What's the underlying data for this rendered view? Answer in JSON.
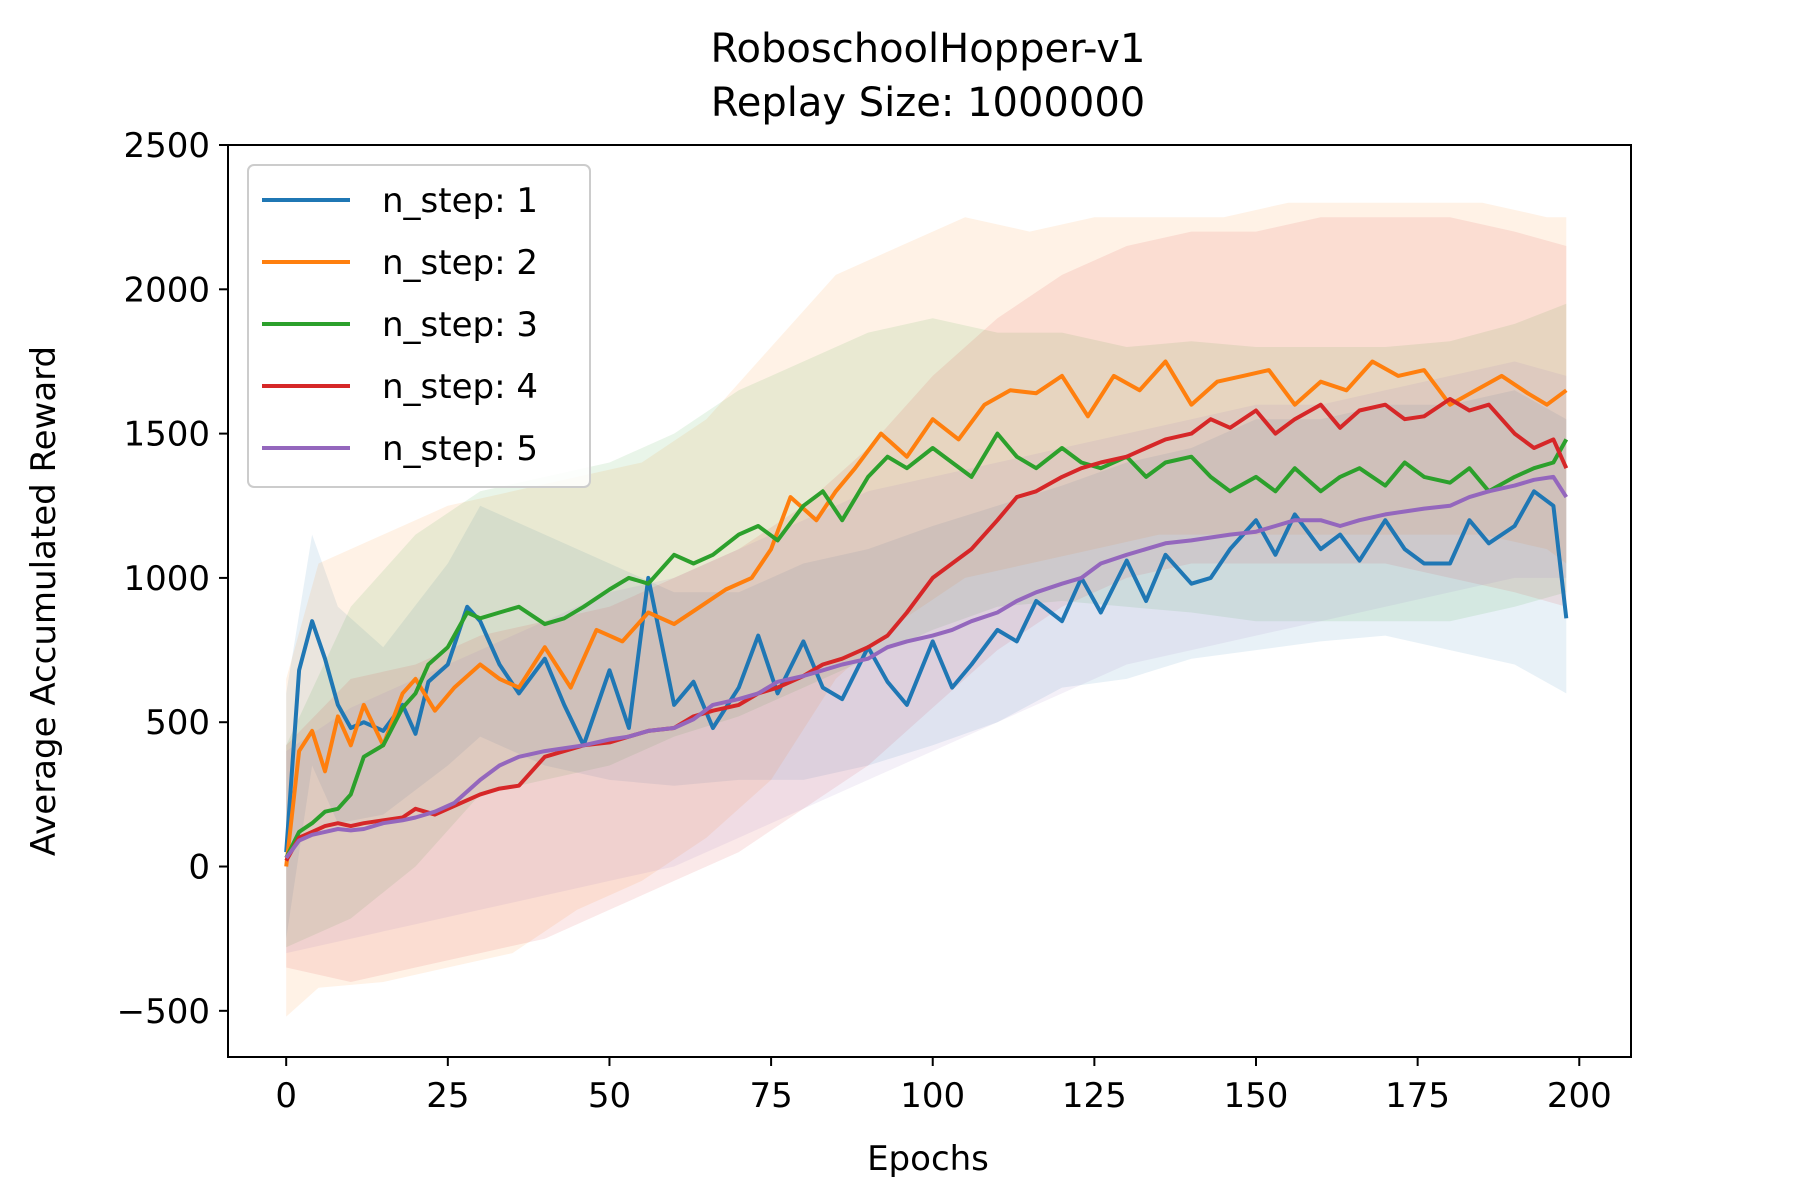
{
  "chart_data": {
    "type": "line",
    "title": "RoboschoolHopper-v1",
    "subtitle": "Replay Size: 1000000",
    "xlabel": "Epochs",
    "ylabel": "Average Accumulated Reward",
    "xlim": [
      -9,
      208
    ],
    "ylim": [
      -660,
      2500
    ],
    "xticks": [
      0,
      25,
      50,
      75,
      100,
      125,
      150,
      175,
      200
    ],
    "yticks": [
      -500,
      0,
      500,
      1000,
      1500,
      2000,
      2500
    ],
    "xtick_labels": [
      "0",
      "25",
      "50",
      "75",
      "100",
      "125",
      "150",
      "175",
      "200"
    ],
    "ytick_labels": [
      "−500",
      "0",
      "500",
      "1000",
      "1500",
      "2000",
      "2500"
    ],
    "legend_position": "upper-left",
    "grid": false,
    "shaded_band": "mean ± std (light translucent fill per series)",
    "series": [
      {
        "name": "n_step: 1",
        "color": "#1f77b4",
        "x": [
          0,
          2,
          4,
          6,
          8,
          10,
          12,
          15,
          18,
          20,
          22,
          25,
          28,
          30,
          33,
          36,
          40,
          43,
          46,
          50,
          53,
          56,
          60,
          63,
          66,
          70,
          73,
          76,
          80,
          83,
          86,
          90,
          93,
          96,
          100,
          103,
          106,
          110,
          113,
          116,
          120,
          123,
          126,
          130,
          133,
          136,
          140,
          143,
          146,
          150,
          153,
          156,
          160,
          163,
          166,
          170,
          173,
          176,
          180,
          183,
          186,
          190,
          193,
          196,
          198
        ],
        "values": [
          50,
          680,
          850,
          720,
          560,
          480,
          500,
          470,
          560,
          460,
          640,
          700,
          900,
          850,
          700,
          600,
          720,
          560,
          420,
          680,
          480,
          1000,
          560,
          640,
          480,
          620,
          800,
          600,
          780,
          620,
          580,
          760,
          640,
          560,
          780,
          620,
          700,
          820,
          780,
          920,
          850,
          1000,
          880,
          1060,
          920,
          1080,
          980,
          1000,
          1100,
          1200,
          1080,
          1220,
          1100,
          1150,
          1060,
          1200,
          1100,
          1050,
          1050,
          1200,
          1120,
          1180,
          1300,
          1250,
          860
        ],
        "band": [
          [
            0,
            -250,
            600
          ],
          [
            4,
            350,
            1150
          ],
          [
            8,
            150,
            900
          ],
          [
            15,
            180,
            760
          ],
          [
            25,
            350,
            1050
          ],
          [
            30,
            450,
            1250
          ],
          [
            40,
            350,
            1150
          ],
          [
            50,
            300,
            1050
          ],
          [
            60,
            280,
            950
          ],
          [
            70,
            300,
            950
          ],
          [
            80,
            300,
            1050
          ],
          [
            90,
            350,
            1100
          ],
          [
            100,
            420,
            1180
          ],
          [
            110,
            500,
            1250
          ],
          [
            120,
            620,
            1320
          ],
          [
            130,
            650,
            1400
          ],
          [
            140,
            720,
            1450
          ],
          [
            150,
            750,
            1550
          ],
          [
            160,
            780,
            1550
          ],
          [
            170,
            800,
            1600
          ],
          [
            180,
            750,
            1600
          ],
          [
            190,
            700,
            1650
          ],
          [
            198,
            600,
            1550
          ]
        ]
      },
      {
        "name": "n_step: 2",
        "color": "#ff7f0e",
        "x": [
          0,
          2,
          4,
          6,
          8,
          10,
          12,
          15,
          18,
          20,
          23,
          26,
          30,
          33,
          36,
          40,
          44,
          48,
          52,
          56,
          60,
          64,
          68,
          72,
          75,
          78,
          82,
          85,
          88,
          92,
          96,
          100,
          104,
          108,
          112,
          116,
          120,
          124,
          128,
          132,
          136,
          140,
          144,
          148,
          152,
          156,
          160,
          164,
          168,
          172,
          176,
          180,
          184,
          188,
          192,
          195,
          198
        ],
        "values": [
          0,
          400,
          470,
          330,
          520,
          420,
          560,
          420,
          600,
          650,
          540,
          620,
          700,
          650,
          620,
          760,
          620,
          820,
          780,
          880,
          840,
          900,
          960,
          1000,
          1100,
          1280,
          1200,
          1300,
          1380,
          1500,
          1420,
          1550,
          1480,
          1600,
          1650,
          1640,
          1700,
          1560,
          1700,
          1650,
          1750,
          1600,
          1680,
          1700,
          1720,
          1600,
          1680,
          1650,
          1750,
          1700,
          1720,
          1600,
          1650,
          1700,
          1640,
          1600,
          1650
        ],
        "band": [
          [
            0,
            -520,
            650
          ],
          [
            5,
            -420,
            1050
          ],
          [
            15,
            -400,
            1150
          ],
          [
            25,
            -350,
            1250
          ],
          [
            35,
            -300,
            1300
          ],
          [
            45,
            -150,
            1350
          ],
          [
            55,
            -50,
            1400
          ],
          [
            65,
            100,
            1550
          ],
          [
            75,
            300,
            1800
          ],
          [
            85,
            650,
            2050
          ],
          [
            95,
            850,
            2150
          ],
          [
            105,
            1000,
            2250
          ],
          [
            115,
            1050,
            2200
          ],
          [
            125,
            1100,
            2250
          ],
          [
            135,
            1150,
            2250
          ],
          [
            145,
            1150,
            2250
          ],
          [
            155,
            1150,
            2300
          ],
          [
            165,
            1150,
            2300
          ],
          [
            175,
            1150,
            2300
          ],
          [
            185,
            1150,
            2300
          ],
          [
            195,
            1100,
            2250
          ],
          [
            198,
            1050,
            2250
          ]
        ]
      },
      {
        "name": "n_step: 3",
        "color": "#2ca02c",
        "x": [
          0,
          2,
          4,
          6,
          8,
          10,
          12,
          15,
          18,
          20,
          22,
          25,
          28,
          30,
          33,
          36,
          40,
          43,
          46,
          50,
          53,
          56,
          60,
          63,
          66,
          70,
          73,
          76,
          80,
          83,
          86,
          90,
          93,
          96,
          100,
          103,
          106,
          110,
          113,
          116,
          120,
          123,
          126,
          130,
          133,
          136,
          140,
          143,
          146,
          150,
          153,
          156,
          160,
          163,
          166,
          170,
          173,
          176,
          180,
          183,
          186,
          190,
          193,
          196,
          198
        ],
        "values": [
          30,
          120,
          150,
          190,
          200,
          250,
          380,
          420,
          550,
          600,
          700,
          760,
          880,
          860,
          880,
          900,
          840,
          860,
          900,
          960,
          1000,
          980,
          1080,
          1050,
          1080,
          1150,
          1180,
          1130,
          1250,
          1300,
          1200,
          1350,
          1420,
          1380,
          1450,
          1400,
          1350,
          1500,
          1420,
          1380,
          1450,
          1400,
          1380,
          1420,
          1350,
          1400,
          1420,
          1350,
          1300,
          1350,
          1300,
          1380,
          1300,
          1350,
          1380,
          1320,
          1400,
          1350,
          1330,
          1380,
          1300,
          1350,
          1380,
          1400,
          1480
        ],
        "band": [
          [
            0,
            -280,
            420
          ],
          [
            10,
            -180,
            900
          ],
          [
            20,
            0,
            1150
          ],
          [
            30,
            250,
            1300
          ],
          [
            40,
            300,
            1350
          ],
          [
            50,
            350,
            1400
          ],
          [
            60,
            450,
            1500
          ],
          [
            70,
            520,
            1650
          ],
          [
            80,
            620,
            1750
          ],
          [
            90,
            720,
            1850
          ],
          [
            100,
            820,
            1900
          ],
          [
            110,
            900,
            1850
          ],
          [
            120,
            920,
            1850
          ],
          [
            130,
            900,
            1800
          ],
          [
            140,
            880,
            1820
          ],
          [
            150,
            850,
            1800
          ],
          [
            160,
            850,
            1800
          ],
          [
            170,
            850,
            1800
          ],
          [
            180,
            850,
            1820
          ],
          [
            190,
            900,
            1880
          ],
          [
            198,
            950,
            1950
          ]
        ]
      },
      {
        "name": "n_step: 4",
        "color": "#d62728",
        "x": [
          0,
          2,
          4,
          6,
          8,
          10,
          12,
          15,
          18,
          20,
          23,
          26,
          30,
          33,
          36,
          40,
          43,
          46,
          50,
          53,
          56,
          60,
          63,
          66,
          70,
          73,
          76,
          80,
          83,
          86,
          90,
          93,
          96,
          100,
          103,
          106,
          110,
          113,
          116,
          120,
          123,
          126,
          130,
          133,
          136,
          140,
          143,
          146,
          150,
          153,
          156,
          160,
          163,
          166,
          170,
          173,
          176,
          180,
          183,
          186,
          190,
          193,
          196,
          198
        ],
        "values": [
          20,
          100,
          120,
          140,
          150,
          140,
          150,
          160,
          170,
          200,
          180,
          210,
          250,
          270,
          280,
          380,
          400,
          420,
          430,
          450,
          470,
          480,
          520,
          540,
          560,
          600,
          620,
          660,
          700,
          720,
          760,
          800,
          880,
          1000,
          1050,
          1100,
          1200,
          1280,
          1300,
          1350,
          1380,
          1400,
          1420,
          1450,
          1480,
          1500,
          1550,
          1520,
          1580,
          1500,
          1550,
          1600,
          1520,
          1580,
          1600,
          1550,
          1560,
          1620,
          1580,
          1600,
          1500,
          1450,
          1480,
          1380
        ],
        "band": [
          [
            0,
            -350,
            420
          ],
          [
            10,
            -400,
            650
          ],
          [
            20,
            -350,
            700
          ],
          [
            30,
            -300,
            800
          ],
          [
            40,
            -250,
            850
          ],
          [
            50,
            -150,
            900
          ],
          [
            60,
            -50,
            1000
          ],
          [
            70,
            50,
            1100
          ],
          [
            80,
            200,
            1250
          ],
          [
            90,
            350,
            1450
          ],
          [
            100,
            550,
            1700
          ],
          [
            110,
            750,
            1900
          ],
          [
            120,
            900,
            2050
          ],
          [
            130,
            1000,
            2150
          ],
          [
            140,
            1050,
            2200
          ],
          [
            150,
            1050,
            2200
          ],
          [
            160,
            1050,
            2250
          ],
          [
            170,
            1050,
            2250
          ],
          [
            180,
            1000,
            2250
          ],
          [
            190,
            950,
            2200
          ],
          [
            198,
            900,
            2150
          ]
        ]
      },
      {
        "name": "n_step: 5",
        "color": "#9467bd",
        "x": [
          0,
          2,
          4,
          6,
          8,
          10,
          12,
          15,
          18,
          20,
          23,
          26,
          30,
          33,
          36,
          40,
          43,
          46,
          50,
          53,
          56,
          60,
          63,
          66,
          70,
          73,
          76,
          80,
          83,
          86,
          90,
          93,
          96,
          100,
          103,
          106,
          110,
          113,
          116,
          120,
          123,
          126,
          130,
          133,
          136,
          140,
          143,
          146,
          150,
          153,
          156,
          160,
          163,
          166,
          170,
          173,
          176,
          180,
          183,
          186,
          190,
          193,
          196,
          198
        ],
        "values": [
          30,
          90,
          110,
          120,
          130,
          125,
          130,
          150,
          160,
          170,
          190,
          220,
          300,
          350,
          380,
          400,
          410,
          420,
          440,
          450,
          470,
          480,
          510,
          560,
          580,
          600,
          640,
          660,
          680,
          700,
          720,
          760,
          780,
          800,
          820,
          850,
          880,
          920,
          950,
          980,
          1000,
          1050,
          1080,
          1100,
          1120,
          1130,
          1140,
          1150,
          1160,
          1180,
          1200,
          1200,
          1180,
          1200,
          1220,
          1230,
          1240,
          1250,
          1280,
          1300,
          1320,
          1340,
          1350,
          1280
        ],
        "band": [
          [
            0,
            -300,
            400
          ],
          [
            10,
            -250,
            550
          ],
          [
            20,
            -200,
            650
          ],
          [
            30,
            -150,
            750
          ],
          [
            40,
            -100,
            850
          ],
          [
            50,
            -50,
            950
          ],
          [
            60,
            0,
            1000
          ],
          [
            70,
            100,
            1100
          ],
          [
            80,
            200,
            1200
          ],
          [
            90,
            300,
            1300
          ],
          [
            100,
            400,
            1350
          ],
          [
            110,
            500,
            1400
          ],
          [
            120,
            600,
            1450
          ],
          [
            130,
            700,
            1500
          ],
          [
            140,
            750,
            1550
          ],
          [
            150,
            800,
            1600
          ],
          [
            160,
            850,
            1600
          ],
          [
            170,
            900,
            1650
          ],
          [
            180,
            950,
            1700
          ],
          [
            190,
            1000,
            1750
          ],
          [
            198,
            1000,
            1700
          ]
        ]
      }
    ]
  }
}
